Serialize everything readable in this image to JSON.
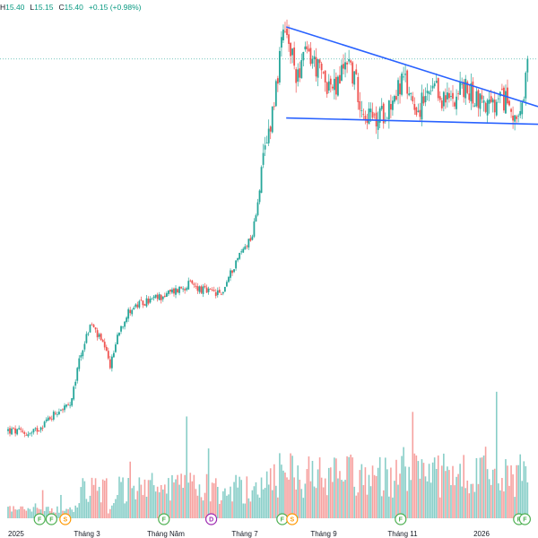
{
  "header": {
    "high_label": "H",
    "high": "15.40",
    "low_label": "L",
    "low": "15.15",
    "close_label": "C",
    "close": "15.40",
    "change": "+0.15 (+0.98%)"
  },
  "colors": {
    "up": "#26a69a",
    "down": "#ef5350",
    "trendline": "#2962ff",
    "price_line": "#26a69a",
    "marker_green": "#4caf50",
    "marker_orange": "#ff9800",
    "marker_purple": "#9c27b0"
  },
  "chart_data": {
    "type": "candlestick",
    "x_ticks": [
      {
        "label": "2025",
        "month": 0
      },
      {
        "label": "Tháng 3",
        "month": 2
      },
      {
        "label": "Tháng Năm",
        "month": 4
      },
      {
        "label": "Tháng 7",
        "month": 6
      },
      {
        "label": "Tháng 9",
        "month": 8
      },
      {
        "label": "Tháng 11",
        "month": 10
      },
      {
        "label": "2026",
        "month": 12
      }
    ],
    "price_range": [
      4.5,
      16.5
    ],
    "last_price": 15.4,
    "price_path": [
      [
        0,
        5.0
      ],
      [
        0.6,
        4.9
      ],
      [
        0.9,
        5.2
      ],
      [
        1.3,
        5.6
      ],
      [
        1.6,
        5.7
      ],
      [
        1.8,
        7.0
      ],
      [
        2.1,
        8.0
      ],
      [
        2.4,
        7.4
      ],
      [
        2.6,
        6.8
      ],
      [
        2.8,
        7.8
      ],
      [
        3.1,
        8.4
      ],
      [
        3.5,
        8.6
      ],
      [
        4.0,
        8.8
      ],
      [
        4.6,
        9.1
      ],
      [
        5.0,
        8.9
      ],
      [
        5.4,
        8.8
      ],
      [
        5.8,
        9.8
      ],
      [
        6.2,
        10.5
      ],
      [
        6.5,
        12.7
      ],
      [
        6.7,
        14.0
      ],
      [
        7.0,
        16.2
      ],
      [
        7.3,
        15.0
      ],
      [
        7.6,
        15.6
      ],
      [
        7.9,
        15.0
      ],
      [
        8.3,
        14.5
      ],
      [
        8.6,
        15.5
      ],
      [
        9.0,
        14.0
      ],
      [
        9.3,
        13.6
      ],
      [
        9.7,
        14.2
      ],
      [
        10.0,
        14.8
      ],
      [
        10.4,
        14.0
      ],
      [
        10.8,
        14.5
      ],
      [
        11.1,
        14.2
      ],
      [
        11.5,
        14.6
      ],
      [
        11.9,
        14.3
      ],
      [
        12.3,
        14.0
      ],
      [
        12.6,
        14.3
      ],
      [
        13.0,
        13.6
      ],
      [
        13.2,
        15.4
      ]
    ],
    "trendlines": [
      {
        "name": "resistance",
        "from": [
          7.05,
          16.3
        ],
        "to": [
          13.2,
          14.15
        ]
      },
      {
        "name": "support",
        "from": [
          7.05,
          13.75
        ],
        "to": [
          13.2,
          13.58
        ]
      }
    ],
    "volume_range": [
      0,
      1
    ],
    "markers": [
      {
        "type": "F",
        "month": 0.8,
        "color": "green"
      },
      {
        "type": "F",
        "month": 1.1,
        "color": "green"
      },
      {
        "type": "S",
        "month": 1.45,
        "color": "orange"
      },
      {
        "type": "F",
        "month": 3.95,
        "color": "green"
      },
      {
        "type": "D",
        "month": 5.15,
        "color": "purple"
      },
      {
        "type": "F",
        "month": 6.95,
        "color": "green"
      },
      {
        "type": "S",
        "month": 7.2,
        "color": "orange"
      },
      {
        "type": "F",
        "month": 9.95,
        "color": "green"
      },
      {
        "type": "F",
        "month": 12.95,
        "color": "green"
      },
      {
        "type": "F",
        "month": 13.1,
        "color": "green"
      }
    ]
  }
}
